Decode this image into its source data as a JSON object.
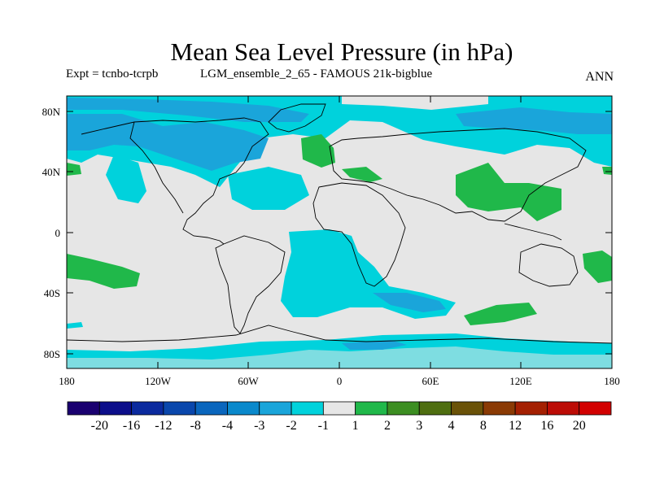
{
  "title": "Mean Sea Level Pressure (in hPa)",
  "subtitle": {
    "expt": "Expt = tcnbo-tcrpb",
    "run": "LGM_ensemble_2_65 - FAMOUS 21k-bigblue",
    "season": "ANN"
  },
  "axes": {
    "lat_labels": [
      "80N",
      "40N",
      "0",
      "40S",
      "80S"
    ],
    "lon_labels": [
      "180",
      "120W",
      "60W",
      "0",
      "60E",
      "120E",
      "180"
    ]
  },
  "colorbar": {
    "colors": [
      "#1a0070",
      "#0c0e8a",
      "#0b2a9e",
      "#0a47ac",
      "#0a66bd",
      "#0a89cc",
      "#1aa5da",
      "#00d2dc",
      "#e6e6e6",
      "#20b84a",
      "#3c8e22",
      "#4e6e10",
      "#6a5208",
      "#8a3a04",
      "#a42002",
      "#bc0c06",
      "#d20000"
    ],
    "labels": [
      "-20",
      "-16",
      "-12",
      "-8",
      "-4",
      "-3",
      "-2",
      "-1",
      "1",
      "2",
      "3",
      "4",
      "8",
      "12",
      "16",
      "20"
    ]
  },
  "colors": {
    "background": "#e6e6e6",
    "neg_1": "#00d2dc",
    "neg_2": "#1aa5da",
    "pos_1": "#20b84a"
  }
}
